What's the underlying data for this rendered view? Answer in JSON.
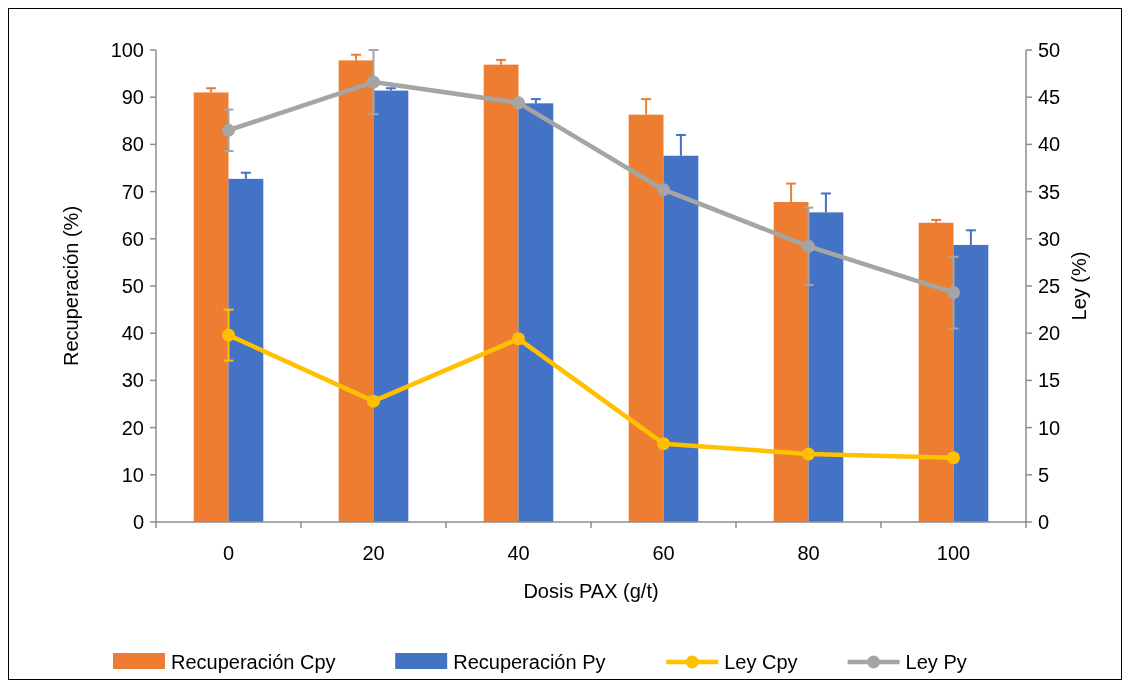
{
  "chart_data": {
    "type": "bar",
    "xlabel": "Dosis PAX (g/t)",
    "ylabel": "Recuperación (%)",
    "y2label": "Ley (%)",
    "categories": [
      "0",
      "20",
      "40",
      "60",
      "80",
      "100"
    ],
    "ylim": [
      0,
      100
    ],
    "yticks": [
      0,
      10,
      20,
      30,
      40,
      50,
      60,
      70,
      80,
      90,
      100
    ],
    "y2lim": [
      0,
      50
    ],
    "y2ticks": [
      0,
      5,
      10,
      15,
      20,
      25,
      30,
      35,
      40,
      45,
      50
    ],
    "grid": false,
    "legend": "bottom",
    "marker": "circle",
    "line_style": "solid",
    "series": [
      {
        "name": "Recuperación Cpy",
        "color": "#ed7d31",
        "values": [
          91,
          97.8,
          96.9,
          86.3,
          67.8,
          63.4
        ],
        "errors": [
          0.9,
          1.2,
          1,
          3.3,
          3.9,
          0.6
        ]
      },
      {
        "name": "Recuperación Py",
        "color": "#4472c4",
        "values": [
          72.7,
          91.4,
          88.7,
          77.6,
          65.6,
          58.7
        ],
        "errors": [
          1.3,
          0.5,
          0.9,
          4.4,
          4,
          3.1
        ]
      },
      {
        "name": "Ley Cpy",
        "type": "line",
        "axis": "y2",
        "color": "#ffc000",
        "values": [
          19.8,
          12.8,
          19.4,
          8.3,
          7.2,
          6.8
        ],
        "errors": [
          2.7,
          null,
          null,
          null,
          0.3,
          null
        ]
      },
      {
        "name": "Ley Py",
        "type": "line",
        "axis": "y2",
        "color": "#a5a5a5",
        "values": [
          41.5,
          46.6,
          44.4,
          35.2,
          29.2,
          24.3
        ],
        "errors": [
          2.2,
          3.4,
          null,
          null,
          4.1,
          3.8
        ]
      }
    ]
  }
}
